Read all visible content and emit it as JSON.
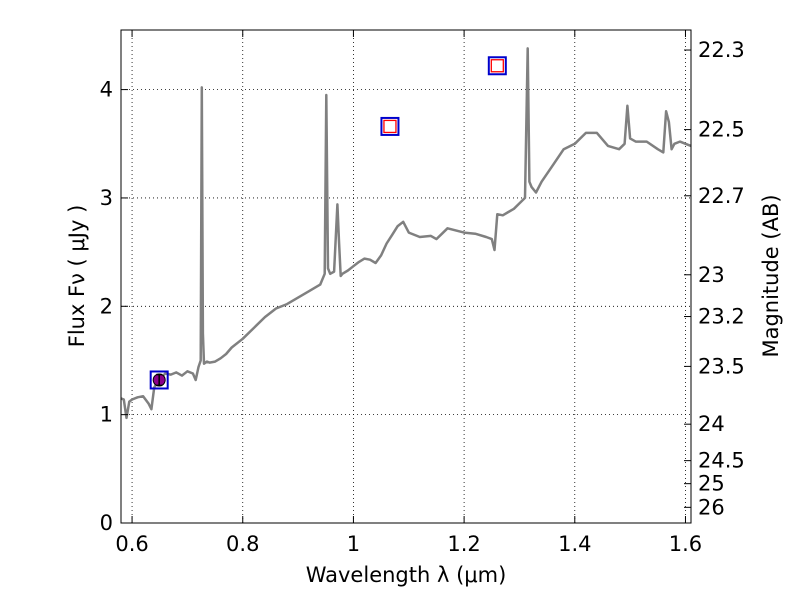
{
  "chart_data": {
    "type": "line",
    "xlabel": "Wavelength  λ (μm)",
    "ylabel_left": "Flux  Fν  ( μJy )",
    "ylabel_right": "Magnitude (AB)",
    "xlim": [
      0.58,
      1.61
    ],
    "ylim": [
      0,
      4.55
    ],
    "x_ticks": [
      {
        "value": 0.6,
        "label": "0.6"
      },
      {
        "value": 0.8,
        "label": "0.8"
      },
      {
        "value": 1.0,
        "label": "1"
      },
      {
        "value": 1.2,
        "label": "1.2"
      },
      {
        "value": 1.4,
        "label": "1.4"
      },
      {
        "value": 1.6,
        "label": "1.6"
      }
    ],
    "y_ticks": [
      {
        "value": 0,
        "label": "0"
      },
      {
        "value": 1,
        "label": "1"
      },
      {
        "value": 2,
        "label": "2"
      },
      {
        "value": 3,
        "label": "3"
      },
      {
        "value": 4,
        "label": "4"
      }
    ],
    "mag_ticks": [
      {
        "value": 22.3,
        "label": "22.3"
      },
      {
        "value": 22.5,
        "label": "22.5"
      },
      {
        "value": 22.7,
        "label": "22.7"
      },
      {
        "value": 23.0,
        "label": "23"
      },
      {
        "value": 23.2,
        "label": "23.2"
      },
      {
        "value": 23.5,
        "label": "23.5"
      },
      {
        "value": 24.0,
        "label": "24"
      },
      {
        "value": 24.5,
        "label": "24.5"
      },
      {
        "value": 25.0,
        "label": "25"
      },
      {
        "value": 26.0,
        "label": "26"
      }
    ],
    "grid": true,
    "spectrum": {
      "color": "#808080",
      "x": [
        0.58,
        0.585,
        0.59,
        0.595,
        0.6,
        0.61,
        0.62,
        0.63,
        0.635,
        0.64,
        0.645,
        0.65,
        0.66,
        0.67,
        0.68,
        0.69,
        0.7,
        0.71,
        0.715,
        0.72,
        0.724,
        0.726,
        0.728,
        0.73,
        0.735,
        0.74,
        0.75,
        0.76,
        0.77,
        0.78,
        0.8,
        0.82,
        0.84,
        0.86,
        0.88,
        0.9,
        0.92,
        0.94,
        0.948,
        0.951,
        0.954,
        0.958,
        0.965,
        0.971,
        0.974,
        0.977,
        0.98,
        0.99,
        1.0,
        1.01,
        1.02,
        1.03,
        1.04,
        1.05,
        1.06,
        1.07,
        1.08,
        1.09,
        1.1,
        1.12,
        1.14,
        1.15,
        1.16,
        1.17,
        1.2,
        1.22,
        1.24,
        1.25,
        1.255,
        1.26,
        1.27,
        1.28,
        1.29,
        1.3,
        1.31,
        1.315,
        1.318,
        1.322,
        1.33,
        1.34,
        1.36,
        1.38,
        1.4,
        1.42,
        1.44,
        1.46,
        1.48,
        1.49,
        1.495,
        1.5,
        1.51,
        1.53,
        1.55,
        1.56,
        1.565,
        1.57,
        1.575,
        1.58,
        1.59,
        1.6,
        1.61
      ],
      "y": [
        1.15,
        1.14,
        0.97,
        1.12,
        1.14,
        1.16,
        1.17,
        1.1,
        1.05,
        1.25,
        1.3,
        1.33,
        1.38,
        1.37,
        1.39,
        1.36,
        1.4,
        1.38,
        1.32,
        1.44,
        1.5,
        4.02,
        1.75,
        1.47,
        1.49,
        1.48,
        1.49,
        1.52,
        1.56,
        1.62,
        1.7,
        1.8,
        1.9,
        1.98,
        2.02,
        2.08,
        2.14,
        2.2,
        2.3,
        3.95,
        2.35,
        2.3,
        2.32,
        2.94,
        2.6,
        2.28,
        2.3,
        2.33,
        2.37,
        2.41,
        2.44,
        2.43,
        2.4,
        2.47,
        2.58,
        2.66,
        2.74,
        2.78,
        2.68,
        2.64,
        2.65,
        2.62,
        2.67,
        2.72,
        2.68,
        2.67,
        2.64,
        2.62,
        2.52,
        2.85,
        2.84,
        2.87,
        2.9,
        2.95,
        3.0,
        4.38,
        3.15,
        3.1,
        3.05,
        3.15,
        3.3,
        3.45,
        3.5,
        3.6,
        3.6,
        3.48,
        3.45,
        3.5,
        3.85,
        3.55,
        3.52,
        3.52,
        3.45,
        3.42,
        3.8,
        3.7,
        3.45,
        3.5,
        3.52,
        3.5,
        3.48
      ]
    },
    "photometry": [
      {
        "x": 0.649,
        "y": 1.32,
        "yerr": 0.05,
        "kind": "measured"
      },
      {
        "x": 1.066,
        "y": 3.66,
        "kind": "model"
      },
      {
        "x": 1.26,
        "y": 4.22,
        "kind": "model"
      }
    ],
    "colors": {
      "box_outer": "#0000cc",
      "box_inner": "#ff0000",
      "point_fill": "#8b008b"
    }
  }
}
